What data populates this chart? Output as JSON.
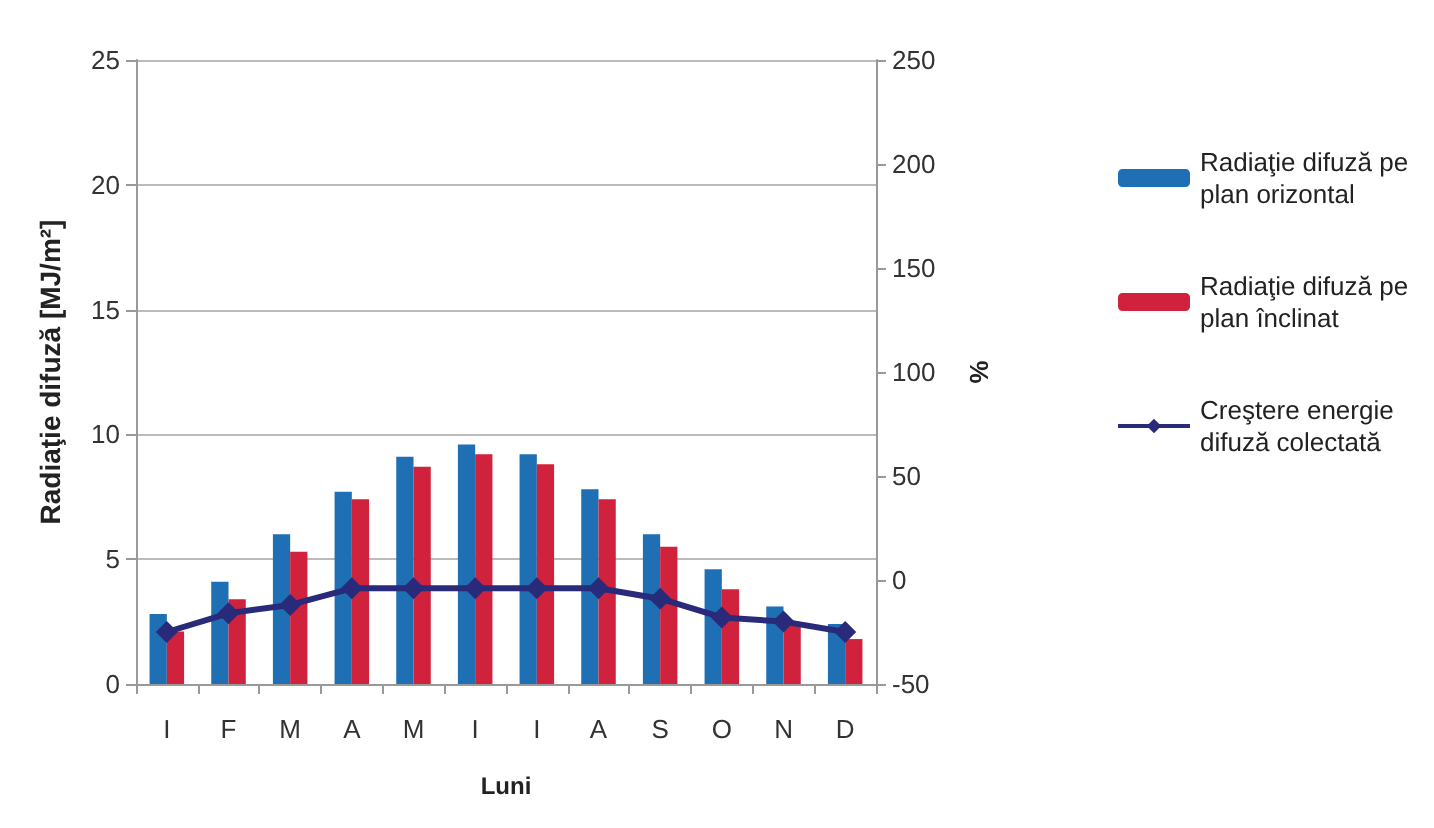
{
  "chart_data": {
    "type": "bar",
    "xlabel": "Luni",
    "ylabel": "Radiaţie difuză [MJ/m²]",
    "y2label": "%",
    "categories": [
      "I",
      "F",
      "M",
      "A",
      "M",
      "I",
      "I",
      "A",
      "S",
      "O",
      "N",
      "D"
    ],
    "series": [
      {
        "name": "Radiaţie difuză pe plan orizontal",
        "color": "#1f6fb5",
        "values": [
          2.8,
          4.1,
          6.0,
          7.7,
          9.1,
          9.6,
          9.2,
          7.8,
          6.0,
          4.6,
          3.1,
          2.4
        ]
      },
      {
        "name": "Radiaţie difuză pe plan înclinat",
        "color": "#d0213d",
        "values": [
          2.1,
          3.4,
          5.3,
          7.4,
          8.7,
          9.2,
          8.8,
          7.4,
          5.5,
          3.8,
          2.4,
          1.8
        ]
      },
      {
        "name": "Creştere energie difuză colectată",
        "type": "line",
        "axis": "y2",
        "color": "#2a2a7a",
        "marker": "diamond",
        "values": [
          -25,
          -16,
          -12,
          -4,
          -4,
          -4,
          -4,
          -4,
          -9,
          -18,
          -20,
          -25
        ]
      }
    ],
    "ylim": [
      0,
      25
    ],
    "yticks": [
      0,
      5,
      10,
      15,
      20,
      25
    ],
    "y2lim": [
      -50,
      250
    ],
    "y2ticks": [
      -50,
      0,
      50,
      100,
      150,
      200,
      250
    ],
    "grid": "y",
    "legend": "right"
  }
}
